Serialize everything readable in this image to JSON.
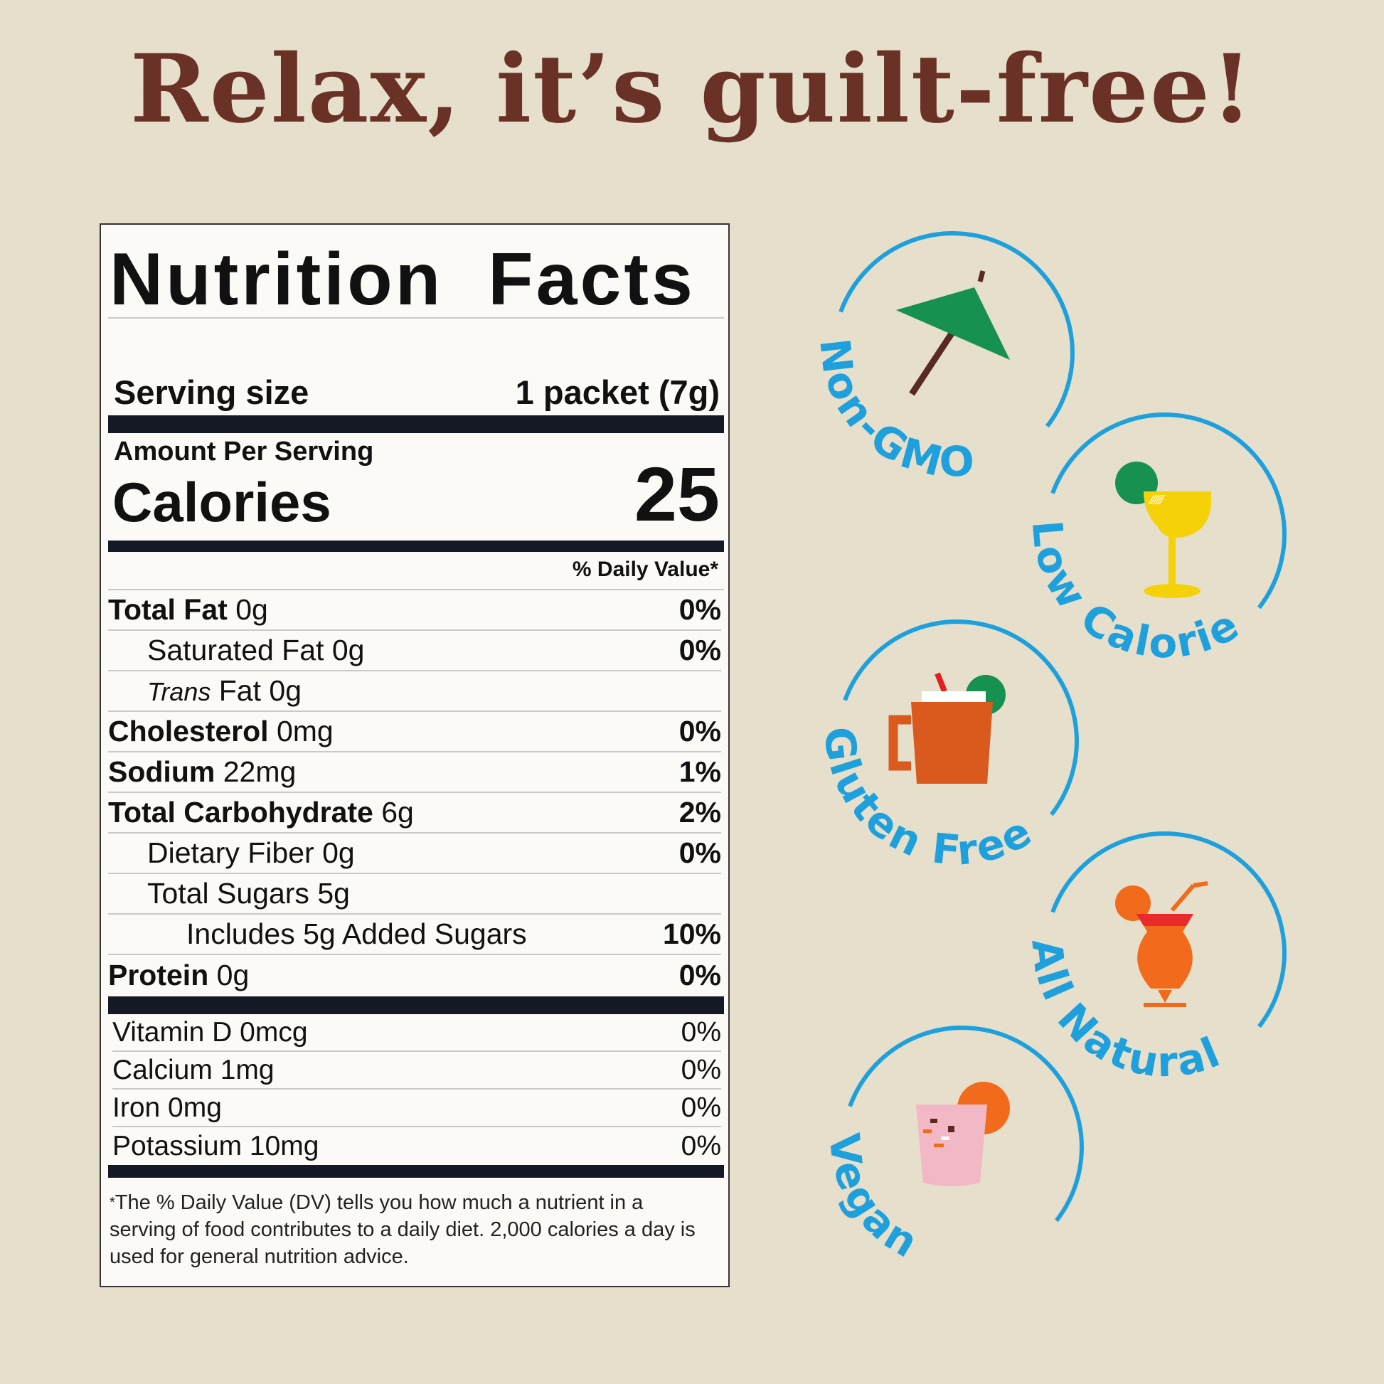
{
  "headline": "Relax, it’s guilt-free!",
  "nutrition": {
    "title": "Nutrition Facts",
    "serving_label": "Serving size",
    "serving_value": "1 packet (7g)",
    "amount_per_serving": "Amount Per Serving",
    "calories_label": "Calories",
    "calories_value": "25",
    "dv_header": "% Daily Value*",
    "rows": [
      {
        "label": "Total Fat",
        "amount": "0g",
        "dv": "0%",
        "indent": 0,
        "bold": true
      },
      {
        "label": "Saturated Fat",
        "amount": "0g",
        "dv": "0%",
        "indent": 1,
        "bold": false
      },
      {
        "label_italic": "Trans",
        "label": "Fat",
        "amount": "0g",
        "dv": "",
        "indent": 1,
        "bold": false
      },
      {
        "label": "Cholesterol",
        "amount": "0mg",
        "dv": "0%",
        "indent": 0,
        "bold": true
      },
      {
        "label": "Sodium",
        "amount": "22mg",
        "dv": "1%",
        "indent": 0,
        "bold": true
      },
      {
        "label": "Total Carbohydrate",
        "amount": "6g",
        "dv": "2%",
        "indent": 0,
        "bold": true
      },
      {
        "label": "Dietary Fiber",
        "amount": "0g",
        "dv": "0%",
        "indent": 1,
        "bold": false
      },
      {
        "label": "Total Sugars",
        "amount": "5g",
        "dv": "",
        "indent": 1,
        "bold": false
      },
      {
        "label": "Includes 5g Added Sugars",
        "amount": "",
        "dv": "10%",
        "indent": 2,
        "bold": false
      },
      {
        "label": "Protein",
        "amount": "0g",
        "dv": "0%",
        "indent": 0,
        "bold": true
      }
    ],
    "vitamins": [
      {
        "label": "Vitamin D 0mcg",
        "dv": "0%"
      },
      {
        "label": "Calcium 1mg",
        "dv": "0%"
      },
      {
        "label": "Iron 0mg",
        "dv": "0%"
      },
      {
        "label": "Potassium 10mg",
        "dv": "0%"
      }
    ],
    "footnote_mark": "*",
    "footnote": "The % Daily Value (DV) tells you how much a nutrient in a serving of food contributes to a daily diet. 2,000 calories a day is used for general nutrition advice."
  },
  "badges": [
    {
      "label": "Non-GMO",
      "icon": "cocktail-umbrella-icon"
    },
    {
      "label": "Low Calorie",
      "icon": "margarita-glass-icon"
    },
    {
      "label": "Gluten Free",
      "icon": "mule-mug-icon"
    },
    {
      "label": "All Natural",
      "icon": "hurricane-glass-icon"
    },
    {
      "label": "Vegan",
      "icon": "pink-tumbler-icon"
    }
  ],
  "colors": {
    "headline": "#6a3226",
    "badge_blue": "#1ea0dc",
    "background": "#e6dfcc",
    "label_bar": "#151926"
  }
}
